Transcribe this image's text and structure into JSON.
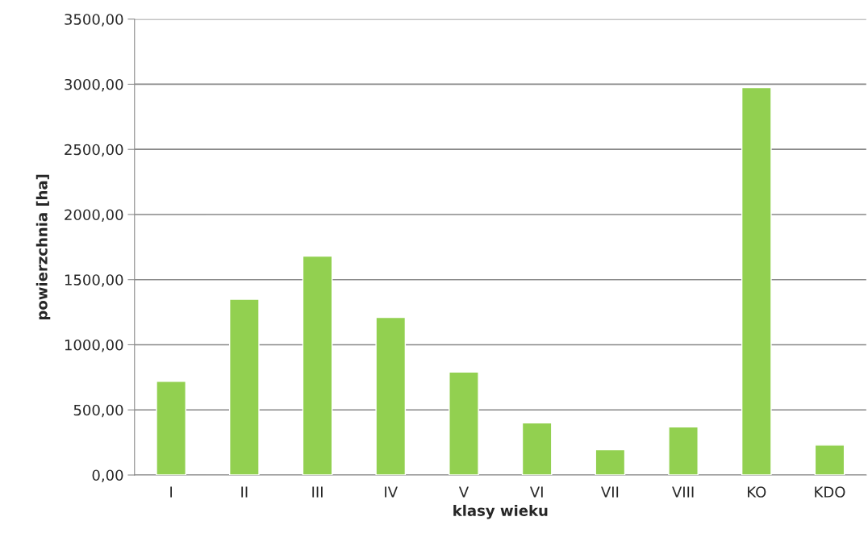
{
  "chart_data": {
    "type": "bar",
    "xlabel": "klasy wieku",
    "ylabel": "powierzchnia [ha]",
    "categories": [
      "I",
      "II",
      "III",
      "IV",
      "V",
      "VI",
      "VII",
      "VIII",
      "KO",
      "KDO"
    ],
    "values": [
      720,
      1350,
      1680,
      1210,
      790,
      400,
      195,
      370,
      2975,
      230
    ],
    "color": "#92d050",
    "ylim": [
      0,
      3500
    ],
    "yticks": [
      {
        "value": 0,
        "label": "0,00"
      },
      {
        "value": 500,
        "label": "500,00"
      },
      {
        "value": 1000,
        "label": "1000,00"
      },
      {
        "value": 1500,
        "label": "1500,00"
      },
      {
        "value": 2000,
        "label": "2000,00"
      },
      {
        "value": 2500,
        "label": "2500,00"
      },
      {
        "value": 3000,
        "label": "3000,00"
      },
      {
        "value": 3500,
        "label": "3500,00"
      }
    ],
    "grid": "y"
  }
}
